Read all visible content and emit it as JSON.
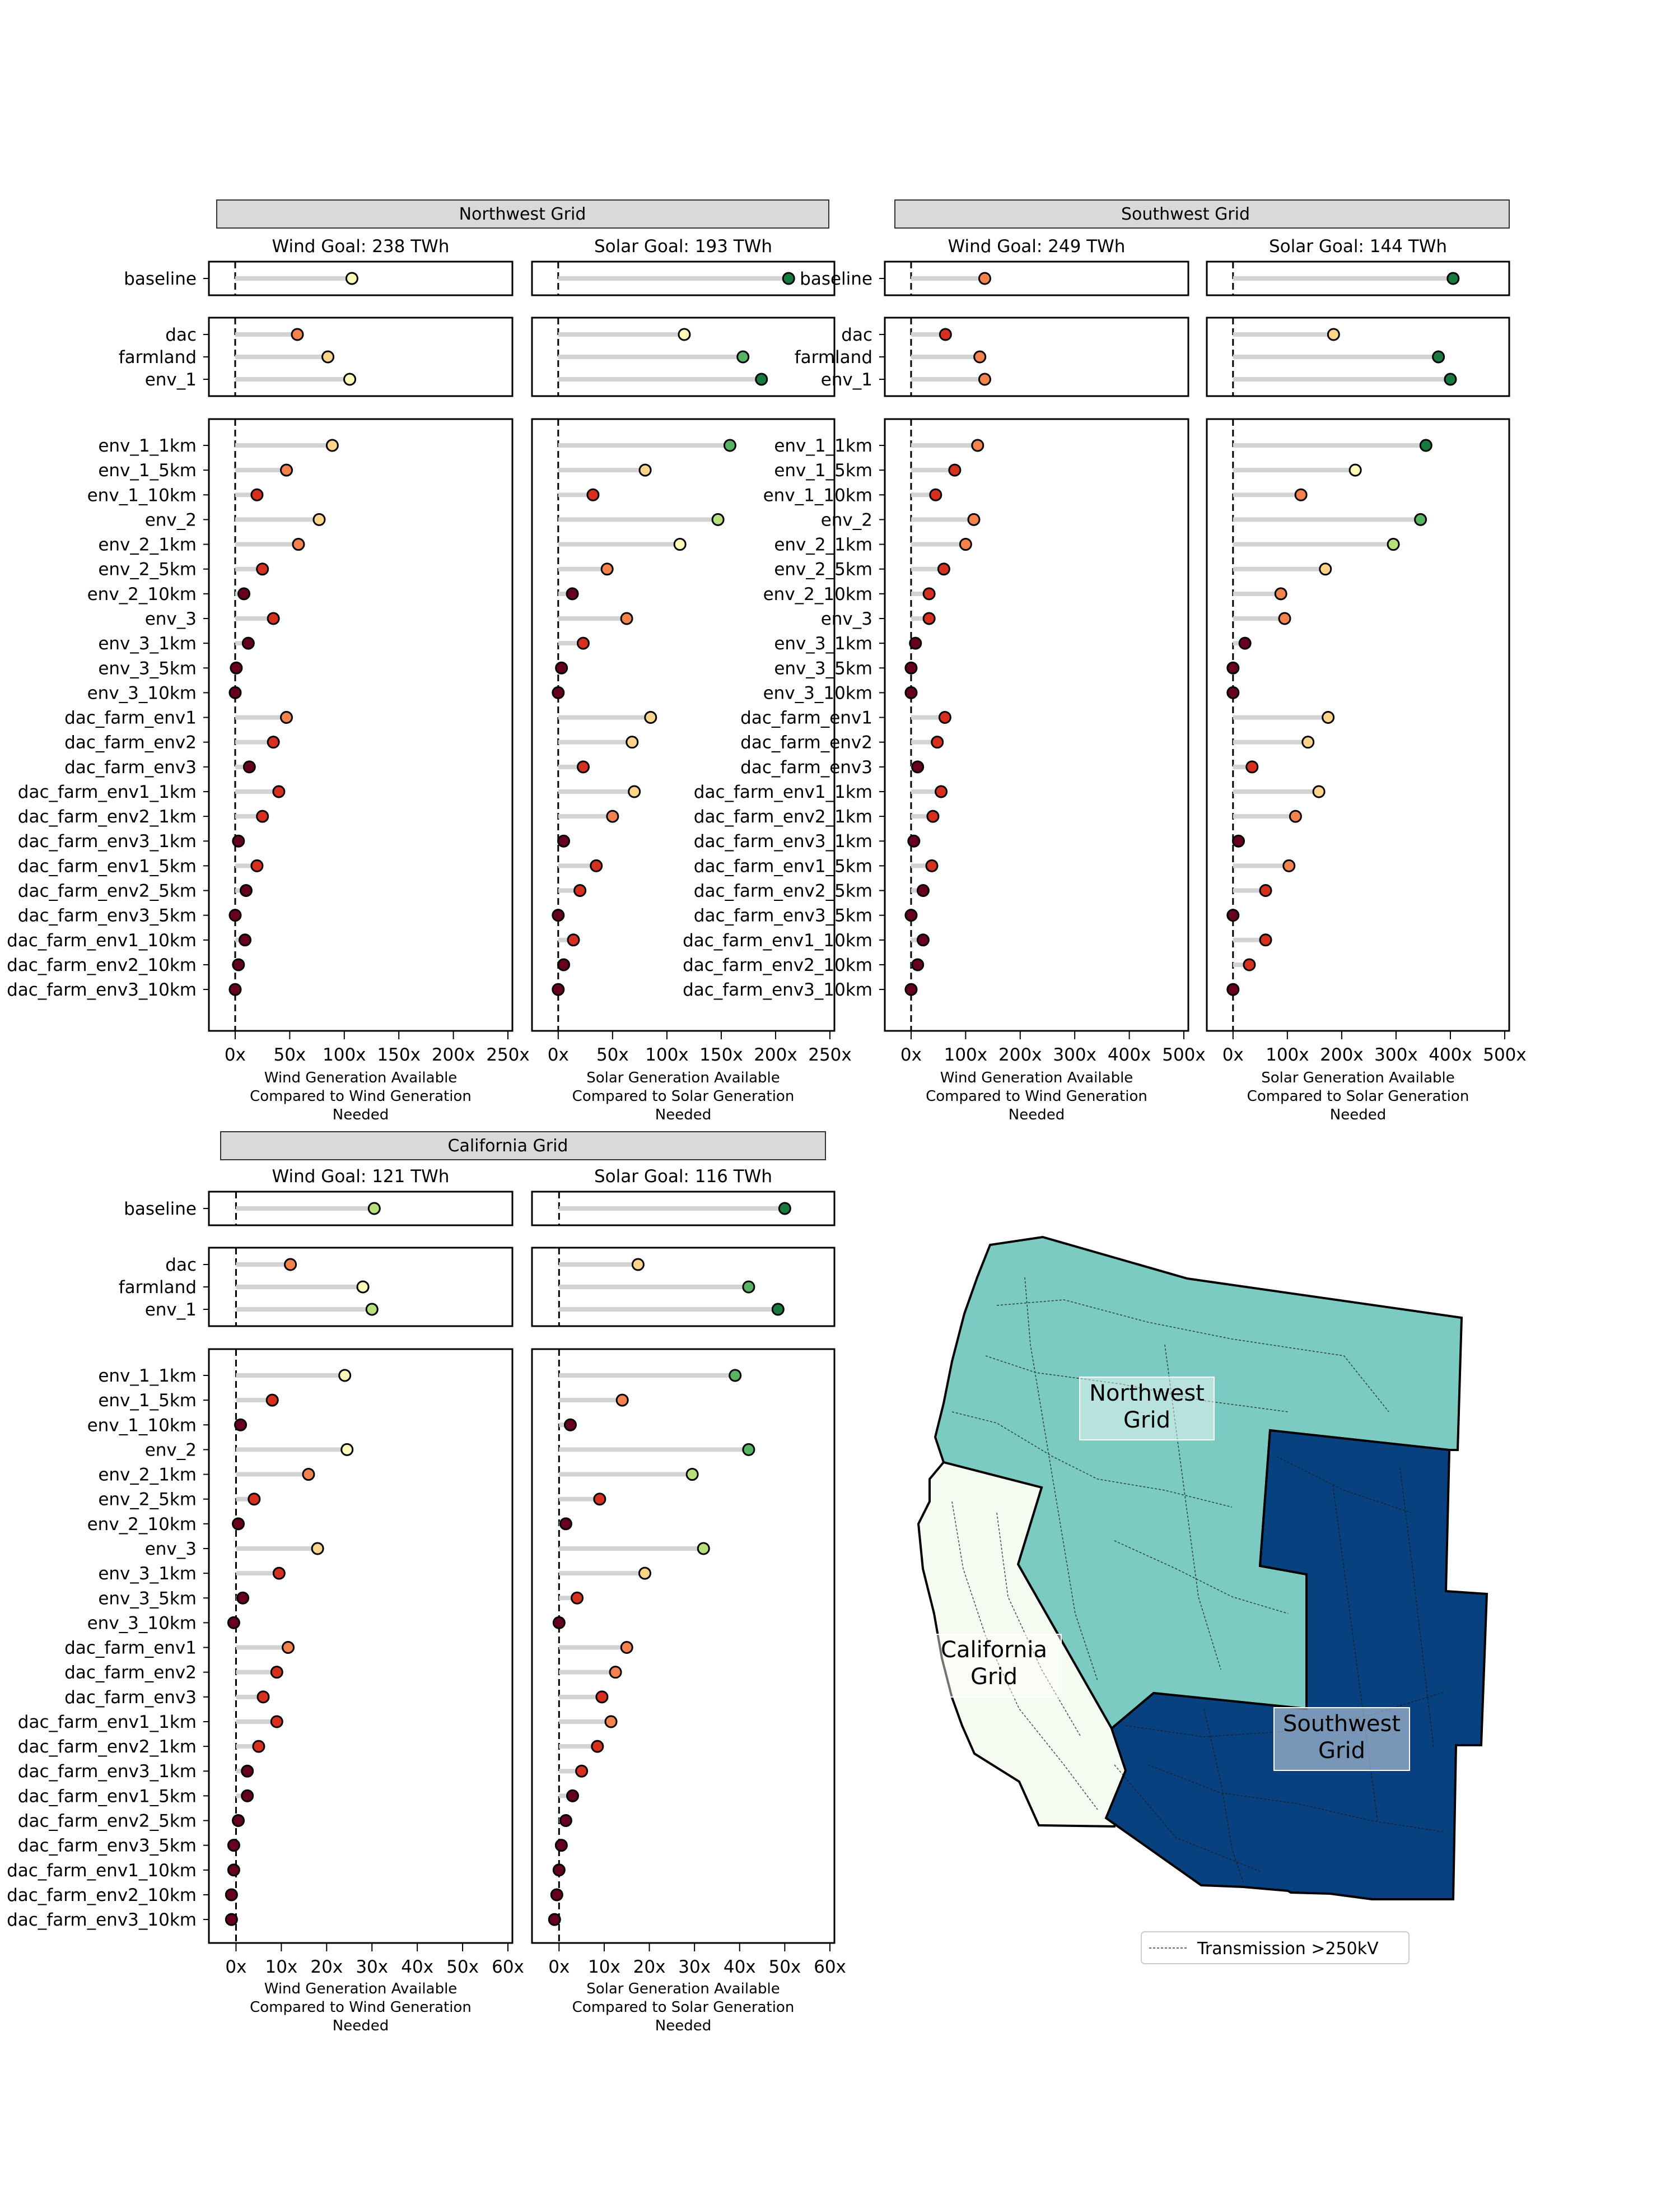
{
  "chart_data": [
    {
      "type": "lollipop",
      "region": "Northwest Grid",
      "xlabel": "Wind Generation Available\nCompared to Wind Generation\nNeeded",
      "xticks": [
        "0x",
        "50x",
        "100x",
        "150x",
        "200x",
        "250x"
      ],
      "xlim": [
        -20,
        250
      ],
      "title": "Wind Goal: 238 TWh",
      "rows": [
        {
          "label": "baseline",
          "value": 107
        },
        {
          "label": "dac",
          "value": 57
        },
        {
          "label": "farmland",
          "value": 85
        },
        {
          "label": "env_1",
          "value": 105
        },
        {
          "label": "env_1_1km",
          "value": 89
        },
        {
          "label": "env_1_5km",
          "value": 47
        },
        {
          "label": "env_1_10km",
          "value": 20
        },
        {
          "label": "env_2",
          "value": 77
        },
        {
          "label": "env_2_1km",
          "value": 58
        },
        {
          "label": "env_2_5km",
          "value": 25
        },
        {
          "label": "env_2_10km",
          "value": 8
        },
        {
          "label": "env_3",
          "value": 35
        },
        {
          "label": "env_3_1km",
          "value": 12
        },
        {
          "label": "env_3_5km",
          "value": 1
        },
        {
          "label": "env_3_10km",
          "value": 0
        },
        {
          "label": "dac_farm_env1",
          "value": 47
        },
        {
          "label": "dac_farm_env2",
          "value": 35
        },
        {
          "label": "dac_farm_env3",
          "value": 13
        },
        {
          "label": "dac_farm_env1_1km",
          "value": 40
        },
        {
          "label": "dac_farm_env2_1km",
          "value": 25
        },
        {
          "label": "dac_farm_env3_1km",
          "value": 3
        },
        {
          "label": "dac_farm_env1_5km",
          "value": 20
        },
        {
          "label": "dac_farm_env2_5km",
          "value": 10
        },
        {
          "label": "dac_farm_env3_5km",
          "value": 0
        },
        {
          "label": "dac_farm_env1_10km",
          "value": 9
        },
        {
          "label": "dac_farm_env2_10km",
          "value": 3
        },
        {
          "label": "dac_farm_env3_10km",
          "value": 0
        }
      ]
    },
    {
      "type": "lollipop",
      "region": "Northwest Grid",
      "xlabel": "Solar Generation Available\nCompared to Solar Generation\nNeeded",
      "xticks": [
        "0x",
        "50x",
        "100x",
        "150x",
        "200x",
        "250x"
      ],
      "xlim": [
        -20,
        250
      ],
      "title": "Solar Goal: 193 TWh",
      "rows": [
        {
          "label": "baseline",
          "value": 212
        },
        {
          "label": "dac",
          "value": 116
        },
        {
          "label": "farmland",
          "value": 170
        },
        {
          "label": "env_1",
          "value": 187
        },
        {
          "label": "env_1_1km",
          "value": 158
        },
        {
          "label": "env_1_5km",
          "value": 80
        },
        {
          "label": "env_1_10km",
          "value": 32
        },
        {
          "label": "env_2",
          "value": 147
        },
        {
          "label": "env_2_1km",
          "value": 112
        },
        {
          "label": "env_2_5km",
          "value": 45
        },
        {
          "label": "env_2_10km",
          "value": 13
        },
        {
          "label": "env_3",
          "value": 63
        },
        {
          "label": "env_3_1km",
          "value": 23
        },
        {
          "label": "env_3_5km",
          "value": 3
        },
        {
          "label": "env_3_10km",
          "value": 0
        },
        {
          "label": "dac_farm_env1",
          "value": 85
        },
        {
          "label": "dac_farm_env2",
          "value": 68
        },
        {
          "label": "dac_farm_env3",
          "value": 23
        },
        {
          "label": "dac_farm_env1_1km",
          "value": 70
        },
        {
          "label": "dac_farm_env2_1km",
          "value": 50
        },
        {
          "label": "dac_farm_env3_1km",
          "value": 5
        },
        {
          "label": "dac_farm_env1_5km",
          "value": 35
        },
        {
          "label": "dac_farm_env2_5km",
          "value": 20
        },
        {
          "label": "dac_farm_env3_5km",
          "value": 0
        },
        {
          "label": "dac_farm_env1_10km",
          "value": 14
        },
        {
          "label": "dac_farm_env2_10km",
          "value": 5
        },
        {
          "label": "dac_farm_env3_10km",
          "value": 0
        }
      ]
    },
    {
      "type": "lollipop",
      "region": "Southwest Grid",
      "xlabel": "Wind Generation Available\nCompared to Wind Generation\nNeeded",
      "xticks": [
        "0x",
        "100x",
        "200x",
        "300x",
        "400x",
        "500x"
      ],
      "xlim": [
        -40,
        500
      ],
      "title": "Wind Goal: 249 TWh",
      "rows": [
        {
          "label": "baseline",
          "value": 135
        },
        {
          "label": "dac",
          "value": 63
        },
        {
          "label": "farmland",
          "value": 126
        },
        {
          "label": "env_1",
          "value": 135
        },
        {
          "label": "env_1_1km",
          "value": 122
        },
        {
          "label": "env_1_5km",
          "value": 80
        },
        {
          "label": "env_1_10km",
          "value": 45
        },
        {
          "label": "env_2",
          "value": 115
        },
        {
          "label": "env_2_1km",
          "value": 100
        },
        {
          "label": "env_2_5km",
          "value": 60
        },
        {
          "label": "env_2_10km",
          "value": 33
        },
        {
          "label": "env_3",
          "value": 33
        },
        {
          "label": "env_3_1km",
          "value": 8
        },
        {
          "label": "env_3_5km",
          "value": 0
        },
        {
          "label": "env_3_10km",
          "value": 0
        },
        {
          "label": "dac_farm_env1",
          "value": 62
        },
        {
          "label": "dac_farm_env2",
          "value": 48
        },
        {
          "label": "dac_farm_env3",
          "value": 12
        },
        {
          "label": "dac_farm_env1_1km",
          "value": 55
        },
        {
          "label": "dac_farm_env2_1km",
          "value": 40
        },
        {
          "label": "dac_farm_env3_1km",
          "value": 5
        },
        {
          "label": "dac_farm_env1_5km",
          "value": 38
        },
        {
          "label": "dac_farm_env2_5km",
          "value": 22
        },
        {
          "label": "dac_farm_env3_5km",
          "value": 0
        },
        {
          "label": "dac_farm_env1_10km",
          "value": 22
        },
        {
          "label": "dac_farm_env2_10km",
          "value": 12
        },
        {
          "label": "dac_farm_env3_10km",
          "value": 0
        }
      ]
    },
    {
      "type": "lollipop",
      "region": "Southwest Grid",
      "xlabel": "Solar Generation Available\nCompared to Solar Generation\nNeeded",
      "xticks": [
        "0x",
        "100x",
        "200x",
        "300x",
        "400x",
        "500x"
      ],
      "xlim": [
        -40,
        500
      ],
      "title": "Solar Goal: 144 TWh",
      "rows": [
        {
          "label": "baseline",
          "value": 405
        },
        {
          "label": "dac",
          "value": 185
        },
        {
          "label": "farmland",
          "value": 378
        },
        {
          "label": "env_1",
          "value": 400
        },
        {
          "label": "env_1_1km",
          "value": 355
        },
        {
          "label": "env_1_5km",
          "value": 225
        },
        {
          "label": "env_1_10km",
          "value": 125
        },
        {
          "label": "env_2",
          "value": 345
        },
        {
          "label": "env_2_1km",
          "value": 295
        },
        {
          "label": "env_2_5km",
          "value": 170
        },
        {
          "label": "env_2_10km",
          "value": 88
        },
        {
          "label": "env_3",
          "value": 95
        },
        {
          "label": "env_3_1km",
          "value": 22
        },
        {
          "label": "env_3_5km",
          "value": 0
        },
        {
          "label": "env_3_10km",
          "value": 0
        },
        {
          "label": "dac_farm_env1",
          "value": 175
        },
        {
          "label": "dac_farm_env2",
          "value": 138
        },
        {
          "label": "dac_farm_env3",
          "value": 35
        },
        {
          "label": "dac_farm_env1_1km",
          "value": 158
        },
        {
          "label": "dac_farm_env2_1km",
          "value": 115
        },
        {
          "label": "dac_farm_env3_1km",
          "value": 10
        },
        {
          "label": "dac_farm_env1_5km",
          "value": 103
        },
        {
          "label": "dac_farm_env2_5km",
          "value": 60
        },
        {
          "label": "dac_farm_env3_5km",
          "value": 0
        },
        {
          "label": "dac_farm_env1_10km",
          "value": 60
        },
        {
          "label": "dac_farm_env2_10km",
          "value": 30
        },
        {
          "label": "dac_farm_env3_10km",
          "value": 0
        }
      ]
    },
    {
      "type": "lollipop",
      "region": "California Grid",
      "xlabel": "Wind Generation Available\nCompared to Wind Generation\nNeeded",
      "xticks": [
        "0x",
        "10x",
        "20x",
        "30x",
        "40x",
        "50x",
        "60x"
      ],
      "xlim": [
        -5,
        60
      ],
      "title": "Wind Goal: 121 TWh",
      "rows": [
        {
          "label": "baseline",
          "value": 30.5
        },
        {
          "label": "dac",
          "value": 12
        },
        {
          "label": "farmland",
          "value": 28
        },
        {
          "label": "env_1",
          "value": 30
        },
        {
          "label": "env_1_1km",
          "value": 24
        },
        {
          "label": "env_1_5km",
          "value": 8
        },
        {
          "label": "env_1_10km",
          "value": 1
        },
        {
          "label": "env_2",
          "value": 24.5
        },
        {
          "label": "env_2_1km",
          "value": 16
        },
        {
          "label": "env_2_5km",
          "value": 4
        },
        {
          "label": "env_2_10km",
          "value": 0.5
        },
        {
          "label": "env_3",
          "value": 18
        },
        {
          "label": "env_3_1km",
          "value": 9.5
        },
        {
          "label": "env_3_5km",
          "value": 1.5
        },
        {
          "label": "env_3_10km",
          "value": -0.5
        },
        {
          "label": "dac_farm_env1",
          "value": 11.5
        },
        {
          "label": "dac_farm_env2",
          "value": 9
        },
        {
          "label": "dac_farm_env3",
          "value": 6
        },
        {
          "label": "dac_farm_env1_1km",
          "value": 9
        },
        {
          "label": "dac_farm_env2_1km",
          "value": 5
        },
        {
          "label": "dac_farm_env3_1km",
          "value": 2.5
        },
        {
          "label": "dac_farm_env1_5km",
          "value": 2.5
        },
        {
          "label": "dac_farm_env2_5km",
          "value": 0.5
        },
        {
          "label": "dac_farm_env3_5km",
          "value": -0.5
        },
        {
          "label": "dac_farm_env1_10km",
          "value": -0.5
        },
        {
          "label": "dac_farm_env2_10km",
          "value": -1
        },
        {
          "label": "dac_farm_env3_10km",
          "value": -1
        }
      ]
    },
    {
      "type": "lollipop",
      "region": "California Grid",
      "xlabel": "Solar Generation Available\nCompared to Solar Generation\nNeeded",
      "xticks": [
        "0x",
        "10x",
        "20x",
        "30x",
        "40x",
        "50x",
        "60x"
      ],
      "xlim": [
        -5,
        60
      ],
      "title": "Solar Goal: 116 TWh",
      "rows": [
        {
          "label": "baseline",
          "value": 50
        },
        {
          "label": "dac",
          "value": 17.5
        },
        {
          "label": "farmland",
          "value": 42
        },
        {
          "label": "env_1",
          "value": 48.5
        },
        {
          "label": "env_1_1km",
          "value": 39
        },
        {
          "label": "env_1_5km",
          "value": 14
        },
        {
          "label": "env_1_10km",
          "value": 2.5
        },
        {
          "label": "env_2",
          "value": 42
        },
        {
          "label": "env_2_1km",
          "value": 29.5
        },
        {
          "label": "env_2_5km",
          "value": 9
        },
        {
          "label": "env_2_10km",
          "value": 1.5
        },
        {
          "label": "env_3",
          "value": 32
        },
        {
          "label": "env_3_1km",
          "value": 19
        },
        {
          "label": "env_3_5km",
          "value": 4
        },
        {
          "label": "env_3_10km",
          "value": 0
        },
        {
          "label": "dac_farm_env1",
          "value": 15
        },
        {
          "label": "dac_farm_env2",
          "value": 12.5
        },
        {
          "label": "dac_farm_env3",
          "value": 9.5
        },
        {
          "label": "dac_farm_env1_1km",
          "value": 11.5
        },
        {
          "label": "dac_farm_env2_1km",
          "value": 8.5
        },
        {
          "label": "dac_farm_env3_1km",
          "value": 5
        },
        {
          "label": "dac_farm_env1_5km",
          "value": 3
        },
        {
          "label": "dac_farm_env2_5km",
          "value": 1.5
        },
        {
          "label": "dac_farm_env3_5km",
          "value": 0.5
        },
        {
          "label": "dac_farm_env1_10km",
          "value": 0
        },
        {
          "label": "dac_farm_env2_10km",
          "value": -0.5
        },
        {
          "label": "dac_farm_env3_10km",
          "value": -1
        }
      ]
    }
  ],
  "regions": {
    "northwest": "Northwest Grid",
    "southwest": "Southwest Grid",
    "california": "California Grid"
  },
  "map": {
    "labels": {
      "northwest": "Northwest\nGrid",
      "southwest": "Southwest\nGrid",
      "california": "California\nGrid"
    },
    "legend": "Transmission >250kV",
    "colors": {
      "northwest": "#7ccbc3",
      "southwest": "#08417f",
      "california": "#f6fbf1"
    }
  },
  "colors": {
    "stem": "#d3d3d3",
    "header_bg": "#d9d9d9",
    "point_scale": [
      "#67001f",
      "#d7301f",
      "#f4824c",
      "#fdd58a",
      "#fefbb8",
      "#b7e07a",
      "#56b463",
      "#177a3e"
    ]
  }
}
